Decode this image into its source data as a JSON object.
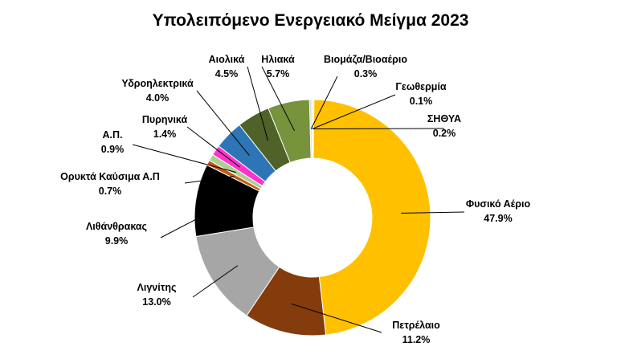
{
  "chart_data": {
    "type": "pie",
    "variant": "donut",
    "title": "Υπολειπόμενο Ενεργειακό Μείγμα 2023",
    "legend": "none",
    "slices": [
      {
        "name": "ΣΗΘΥΑ",
        "value": 0.2,
        "label": "0.2%",
        "color": "#c5e0b4"
      },
      {
        "name": "Φυσικό Αέριο",
        "value": 47.9,
        "label": "47.9%",
        "color": "#ffc000"
      },
      {
        "name": "Πετρέλαιο",
        "value": 11.2,
        "label": "11.2%",
        "color": "#843c0c"
      },
      {
        "name": "Λιγνίτης",
        "value": 13.0,
        "label": "13.0%",
        "color": "#a6a6a6"
      },
      {
        "name": "Λιθάνθρακας",
        "value": 9.9,
        "label": "9.9%",
        "color": "#000000"
      },
      {
        "name": "Ορυκτά Καύσιμα Α.Π",
        "value": 0.7,
        "label": "0.7%",
        "color": "#c55a11"
      },
      {
        "name": "Α.Π.",
        "value": 0.9,
        "label": "0.9%",
        "color": "#a9d18e"
      },
      {
        "name": "Πυρηνικά",
        "value": 1.4,
        "label": "1.4%",
        "color": "#ff33cc"
      },
      {
        "name": "Υδροηλεκτρικά",
        "value": 4.0,
        "label": "4.0%",
        "color": "#2e75b6"
      },
      {
        "name": "Αιολικά",
        "value": 4.5,
        "label": "4.5%",
        "color": "#4f6228"
      },
      {
        "name": "Ηλιακά",
        "value": 5.7,
        "label": "5.7%",
        "color": "#77933c"
      },
      {
        "name": "Βιομάζα/Βιοαέριο",
        "value": 0.3,
        "label": "0.3%",
        "color": "#d9d9d9"
      },
      {
        "name": "Γεωθερμία",
        "value": 0.1,
        "label": "0.1%",
        "color": "#92d050"
      }
    ]
  }
}
